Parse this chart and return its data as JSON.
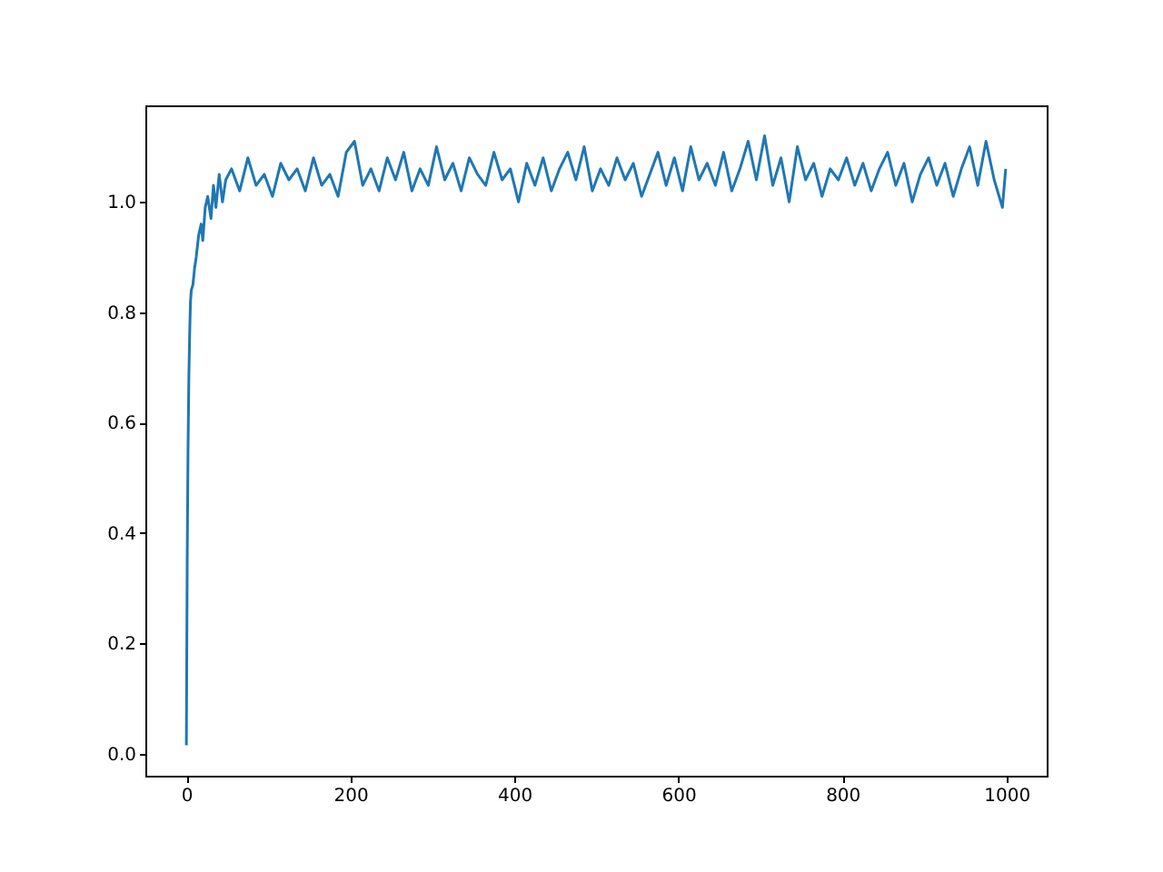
{
  "chart_data": {
    "type": "line",
    "grid": false,
    "marker": "none",
    "line_style": "solid",
    "xlim": [
      -50,
      1049
    ],
    "ylim": [
      -0.04,
      1.175
    ],
    "xticks": [
      0,
      200,
      400,
      600,
      800,
      1000
    ],
    "yticks": [
      {
        "value": 0,
        "label": "0.0"
      },
      0.2,
      0.4,
      0.6,
      0.8,
      {
        "value": 1,
        "label": "1.0"
      }
    ],
    "x": [
      0,
      1,
      2,
      3,
      4,
      5,
      6,
      8,
      10,
      12,
      15,
      18,
      20,
      23,
      26,
      30,
      33,
      36,
      40,
      44,
      48,
      55,
      65,
      75,
      85,
      95,
      105,
      115,
      125,
      135,
      145,
      155,
      165,
      175,
      185,
      195,
      205,
      215,
      225,
      235,
      245,
      255,
      265,
      275,
      285,
      295,
      305,
      315,
      325,
      335,
      345,
      355,
      365,
      375,
      385,
      395,
      405,
      415,
      425,
      435,
      445,
      455,
      465,
      475,
      485,
      495,
      505,
      515,
      525,
      535,
      545,
      555,
      565,
      575,
      585,
      595,
      605,
      615,
      625,
      635,
      645,
      655,
      665,
      675,
      685,
      695,
      705,
      715,
      725,
      735,
      745,
      755,
      765,
      775,
      785,
      795,
      805,
      815,
      825,
      835,
      845,
      855,
      865,
      875,
      885,
      895,
      905,
      915,
      925,
      935,
      945,
      955,
      965,
      975,
      985,
      995,
      999
    ],
    "series": [
      {
        "color": "#1f77b4",
        "values": [
          0.015,
          0.35,
          0.55,
          0.68,
          0.76,
          0.82,
          0.84,
          0.85,
          0.88,
          0.9,
          0.94,
          0.96,
          0.93,
          0.99,
          1.01,
          0.97,
          1.03,
          0.99,
          1.05,
          1.0,
          1.04,
          1.06,
          1.02,
          1.08,
          1.03,
          1.05,
          1.01,
          1.07,
          1.04,
          1.06,
          1.02,
          1.08,
          1.03,
          1.05,
          1.01,
          1.09,
          1.11,
          1.03,
          1.06,
          1.02,
          1.08,
          1.04,
          1.09,
          1.02,
          1.06,
          1.03,
          1.1,
          1.04,
          1.07,
          1.02,
          1.08,
          1.05,
          1.03,
          1.09,
          1.04,
          1.06,
          1.0,
          1.07,
          1.03,
          1.08,
          1.02,
          1.06,
          1.09,
          1.04,
          1.1,
          1.02,
          1.06,
          1.03,
          1.08,
          1.04,
          1.07,
          1.01,
          1.05,
          1.09,
          1.03,
          1.08,
          1.02,
          1.1,
          1.04,
          1.07,
          1.03,
          1.09,
          1.02,
          1.06,
          1.11,
          1.04,
          1.12,
          1.03,
          1.08,
          1.0,
          1.1,
          1.04,
          1.07,
          1.01,
          1.06,
          1.04,
          1.08,
          1.03,
          1.07,
          1.02,
          1.06,
          1.09,
          1.03,
          1.07,
          1.0,
          1.05,
          1.08,
          1.03,
          1.07,
          1.01,
          1.06,
          1.1,
          1.03,
          1.11,
          1.04,
          0.99,
          1.06
        ]
      }
    ]
  }
}
